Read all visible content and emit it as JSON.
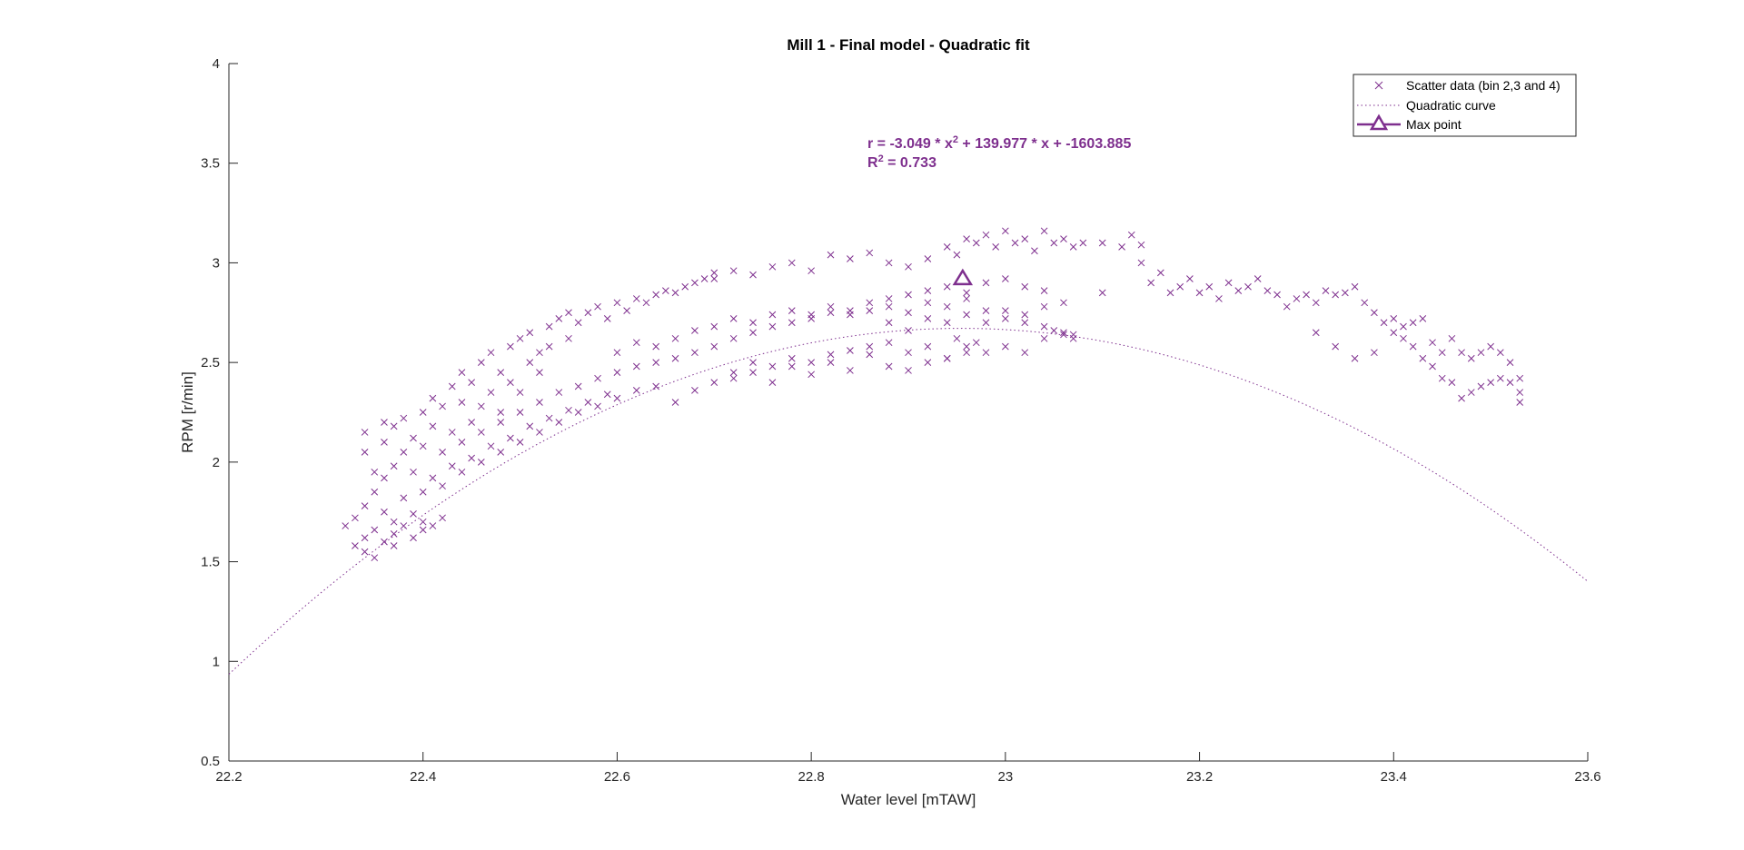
{
  "chart_data": {
    "type": "scatter",
    "title": "Mill 1 - Final model - Quadratic fit",
    "xlabel": "Water level [mTAW]",
    "ylabel": "RPM [r/min]",
    "xlim": [
      22.2,
      23.6
    ],
    "ylim": [
      0.5,
      4
    ],
    "xticks": [
      "22.2",
      "22.4",
      "22.6",
      "22.8",
      "23",
      "23.2",
      "23.4",
      "23.6"
    ],
    "yticks": [
      "0.5",
      "1",
      "1.5",
      "2",
      "2.5",
      "3",
      "3.5",
      "4"
    ],
    "grid": false,
    "legend_position": "top-right",
    "color": "#7E2F8E",
    "annotation": {
      "line1_prefix": "r = -3.049 * x",
      "line1_sup": "2",
      "line1_suffix": " + 139.977 * x + -1603.885",
      "line2_prefix": "R",
      "line2_sup": "2",
      "line2_suffix": " = 0.733"
    },
    "fit": {
      "a": -3.049,
      "b": 139.977,
      "c": -1603.885,
      "r2": 0.733,
      "x_range": [
        22.2,
        23.6
      ]
    },
    "max_point": {
      "x": 22.956,
      "y": 2.92
    },
    "series": [
      {
        "name": "Scatter data (bin 2,3 and 4)",
        "marker": "x",
        "points": [
          [
            22.32,
            1.68
          ],
          [
            22.33,
            1.58
          ],
          [
            22.33,
            1.72
          ],
          [
            22.34,
            1.62
          ],
          [
            22.34,
            1.78
          ],
          [
            22.34,
            1.55
          ],
          [
            22.35,
            1.66
          ],
          [
            22.35,
            1.85
          ],
          [
            22.35,
            1.52
          ],
          [
            22.36,
            1.6
          ],
          [
            22.36,
            1.75
          ],
          [
            22.36,
            1.92
          ],
          [
            22.37,
            1.64
          ],
          [
            22.37,
            1.7
          ],
          [
            22.37,
            1.58
          ],
          [
            22.38,
            1.68
          ],
          [
            22.38,
            1.82
          ],
          [
            22.39,
            1.62
          ],
          [
            22.39,
            1.74
          ],
          [
            22.4,
            1.66
          ],
          [
            22.4,
            1.7
          ],
          [
            22.41,
            1.68
          ],
          [
            22.42,
            1.72
          ],
          [
            22.34,
            2.05
          ],
          [
            22.34,
            2.15
          ],
          [
            22.35,
            1.95
          ],
          [
            22.36,
            2.1
          ],
          [
            22.36,
            2.2
          ],
          [
            22.37,
            1.98
          ],
          [
            22.37,
            2.18
          ],
          [
            22.38,
            2.05
          ],
          [
            22.38,
            2.22
          ],
          [
            22.39,
            2.12
          ],
          [
            22.39,
            1.95
          ],
          [
            22.4,
            2.25
          ],
          [
            22.4,
            2.08
          ],
          [
            22.41,
            2.18
          ],
          [
            22.41,
            2.32
          ],
          [
            22.42,
            2.05
          ],
          [
            22.42,
            2.28
          ],
          [
            22.43,
            2.38
          ],
          [
            22.43,
            2.15
          ],
          [
            22.44,
            2.3
          ],
          [
            22.44,
            2.45
          ],
          [
            22.45,
            2.2
          ],
          [
            22.45,
            2.4
          ],
          [
            22.46,
            2.5
          ],
          [
            22.46,
            2.28
          ],
          [
            22.47,
            2.35
          ],
          [
            22.47,
            2.55
          ],
          [
            22.48,
            2.45
          ],
          [
            22.48,
            2.25
          ],
          [
            22.49,
            2.58
          ],
          [
            22.49,
            2.4
          ],
          [
            22.5,
            2.62
          ],
          [
            22.5,
            2.35
          ],
          [
            22.51,
            2.5
          ],
          [
            22.51,
            2.65
          ],
          [
            22.52,
            2.55
          ],
          [
            22.52,
            2.45
          ],
          [
            22.53,
            2.68
          ],
          [
            22.53,
            2.58
          ],
          [
            22.54,
            2.72
          ],
          [
            22.55,
            2.62
          ],
          [
            22.55,
            2.75
          ],
          [
            22.56,
            2.7
          ],
          [
            22.57,
            2.75
          ],
          [
            22.58,
            2.78
          ],
          [
            22.59,
            2.72
          ],
          [
            22.6,
            2.8
          ],
          [
            22.61,
            2.76
          ],
          [
            22.62,
            2.82
          ],
          [
            22.63,
            2.8
          ],
          [
            22.64,
            2.84
          ],
          [
            22.65,
            2.86
          ],
          [
            22.66,
            2.85
          ],
          [
            22.67,
            2.88
          ],
          [
            22.68,
            2.9
          ],
          [
            22.69,
            2.92
          ],
          [
            22.7,
            2.95
          ],
          [
            22.4,
            1.85
          ],
          [
            22.41,
            1.92
          ],
          [
            22.42,
            1.88
          ],
          [
            22.43,
            1.98
          ],
          [
            22.44,
            1.95
          ],
          [
            22.45,
            2.02
          ],
          [
            22.46,
            2.0
          ],
          [
            22.47,
            2.08
          ],
          [
            22.48,
            2.05
          ],
          [
            22.49,
            2.12
          ],
          [
            22.5,
            2.1
          ],
          [
            22.51,
            2.18
          ],
          [
            22.52,
            2.15
          ],
          [
            22.53,
            2.22
          ],
          [
            22.54,
            2.2
          ],
          [
            22.55,
            2.26
          ],
          [
            22.56,
            2.25
          ],
          [
            22.57,
            2.3
          ],
          [
            22.58,
            2.28
          ],
          [
            22.59,
            2.34
          ],
          [
            22.6,
            2.32
          ],
          [
            22.62,
            2.36
          ],
          [
            22.64,
            2.38
          ],
          [
            22.66,
            2.3
          ],
          [
            22.68,
            2.36
          ],
          [
            22.7,
            2.4
          ],
          [
            22.72,
            2.45
          ],
          [
            22.74,
            2.5
          ],
          [
            22.76,
            2.48
          ],
          [
            22.78,
            2.52
          ],
          [
            22.8,
            2.5
          ],
          [
            22.82,
            2.54
          ],
          [
            22.84,
            2.56
          ],
          [
            22.86,
            2.58
          ],
          [
            22.88,
            2.6
          ],
          [
            22.9,
            2.55
          ],
          [
            22.92,
            2.58
          ],
          [
            22.94,
            2.52
          ],
          [
            22.95,
            2.62
          ],
          [
            22.96,
            2.55
          ],
          [
            22.97,
            2.6
          ],
          [
            22.44,
            2.1
          ],
          [
            22.46,
            2.15
          ],
          [
            22.48,
            2.2
          ],
          [
            22.5,
            2.25
          ],
          [
            22.52,
            2.3
          ],
          [
            22.54,
            2.35
          ],
          [
            22.56,
            2.38
          ],
          [
            22.58,
            2.42
          ],
          [
            22.6,
            2.45
          ],
          [
            22.62,
            2.48
          ],
          [
            22.64,
            2.5
          ],
          [
            22.66,
            2.52
          ],
          [
            22.68,
            2.55
          ],
          [
            22.7,
            2.58
          ],
          [
            22.72,
            2.62
          ],
          [
            22.74,
            2.65
          ],
          [
            22.76,
            2.68
          ],
          [
            22.78,
            2.7
          ],
          [
            22.8,
            2.72
          ],
          [
            22.82,
            2.75
          ],
          [
            22.84,
            2.74
          ],
          [
            22.86,
            2.76
          ],
          [
            22.88,
            2.78
          ],
          [
            22.9,
            2.75
          ],
          [
            22.92,
            2.8
          ],
          [
            22.94,
            2.78
          ],
          [
            22.96,
            2.82
          ],
          [
            22.98,
            2.76
          ],
          [
            23.0,
            2.72
          ],
          [
            23.02,
            2.7
          ],
          [
            23.04,
            2.68
          ],
          [
            23.05,
            2.66
          ],
          [
            23.06,
            2.64
          ],
          [
            23.07,
            2.62
          ],
          [
            22.6,
            2.55
          ],
          [
            22.62,
            2.6
          ],
          [
            22.64,
            2.58
          ],
          [
            22.66,
            2.62
          ],
          [
            22.68,
            2.66
          ],
          [
            22.7,
            2.68
          ],
          [
            22.72,
            2.72
          ],
          [
            22.74,
            2.7
          ],
          [
            22.76,
            2.74
          ],
          [
            22.78,
            2.76
          ],
          [
            22.8,
            2.74
          ],
          [
            22.82,
            2.78
          ],
          [
            22.84,
            2.76
          ],
          [
            22.86,
            2.8
          ],
          [
            22.88,
            2.82
          ],
          [
            22.9,
            2.84
          ],
          [
            22.92,
            2.86
          ],
          [
            22.94,
            2.88
          ],
          [
            22.96,
            2.85
          ],
          [
            22.98,
            2.9
          ],
          [
            23.0,
            2.92
          ],
          [
            23.02,
            2.88
          ],
          [
            23.04,
            2.86
          ],
          [
            22.7,
            2.92
          ],
          [
            22.72,
            2.96
          ],
          [
            22.74,
            2.94
          ],
          [
            22.76,
            2.98
          ],
          [
            22.78,
            3.0
          ],
          [
            22.8,
            2.96
          ],
          [
            22.82,
            3.04
          ],
          [
            22.84,
            3.02
          ],
          [
            22.86,
            3.05
          ],
          [
            22.88,
            3.0
          ],
          [
            22.9,
            2.98
          ],
          [
            22.92,
            3.02
          ],
          [
            22.94,
            3.08
          ],
          [
            22.95,
            3.04
          ],
          [
            22.96,
            3.12
          ],
          [
            22.97,
            3.1
          ],
          [
            22.98,
            3.14
          ],
          [
            22.99,
            3.08
          ],
          [
            23.0,
            3.16
          ],
          [
            23.01,
            3.1
          ],
          [
            23.02,
            3.12
          ],
          [
            23.03,
            3.06
          ],
          [
            23.04,
            3.16
          ],
          [
            23.05,
            3.1
          ],
          [
            23.06,
            3.12
          ],
          [
            23.07,
            3.08
          ],
          [
            23.08,
            3.1
          ],
          [
            23.1,
            3.1
          ],
          [
            23.12,
            3.08
          ],
          [
            23.13,
            3.14
          ],
          [
            23.14,
            3.09
          ],
          [
            22.72,
            2.42
          ],
          [
            22.74,
            2.45
          ],
          [
            22.76,
            2.4
          ],
          [
            22.78,
            2.48
          ],
          [
            22.8,
            2.44
          ],
          [
            22.82,
            2.5
          ],
          [
            22.84,
            2.46
          ],
          [
            22.86,
            2.54
          ],
          [
            22.88,
            2.48
          ],
          [
            22.9,
            2.46
          ],
          [
            22.92,
            2.5
          ],
          [
            22.94,
            2.52
          ],
          [
            22.96,
            2.58
          ],
          [
            22.98,
            2.55
          ],
          [
            23.0,
            2.58
          ],
          [
            23.02,
            2.55
          ],
          [
            23.04,
            2.62
          ],
          [
            23.06,
            2.65
          ],
          [
            23.07,
            2.64
          ],
          [
            22.88,
            2.7
          ],
          [
            22.9,
            2.66
          ],
          [
            22.92,
            2.72
          ],
          [
            22.94,
            2.7
          ],
          [
            22.96,
            2.74
          ],
          [
            22.98,
            2.7
          ],
          [
            23.0,
            2.76
          ],
          [
            23.02,
            2.74
          ],
          [
            23.04,
            2.78
          ],
          [
            23.06,
            2.8
          ],
          [
            23.1,
            2.85
          ],
          [
            23.14,
            3.0
          ],
          [
            23.15,
            2.9
          ],
          [
            23.16,
            2.95
          ],
          [
            23.17,
            2.85
          ],
          [
            23.18,
            2.88
          ],
          [
            23.19,
            2.92
          ],
          [
            23.2,
            2.85
          ],
          [
            23.21,
            2.88
          ],
          [
            23.22,
            2.82
          ],
          [
            23.23,
            2.9
          ],
          [
            23.24,
            2.86
          ],
          [
            23.25,
            2.88
          ],
          [
            23.26,
            2.92
          ],
          [
            23.27,
            2.86
          ],
          [
            23.28,
            2.84
          ],
          [
            23.29,
            2.78
          ],
          [
            23.3,
            2.82
          ],
          [
            23.31,
            2.84
          ],
          [
            23.32,
            2.8
          ],
          [
            23.33,
            2.86
          ],
          [
            23.34,
            2.84
          ],
          [
            23.35,
            2.85
          ],
          [
            23.36,
            2.88
          ],
          [
            23.37,
            2.8
          ],
          [
            23.38,
            2.75
          ],
          [
            23.39,
            2.7
          ],
          [
            23.4,
            2.72
          ],
          [
            23.41,
            2.68
          ],
          [
            23.42,
            2.7
          ],
          [
            23.43,
            2.72
          ],
          [
            23.44,
            2.6
          ],
          [
            23.45,
            2.55
          ],
          [
            23.46,
            2.62
          ],
          [
            23.47,
            2.55
          ],
          [
            23.48,
            2.52
          ],
          [
            23.49,
            2.55
          ],
          [
            23.5,
            2.58
          ],
          [
            23.51,
            2.55
          ],
          [
            23.52,
            2.5
          ],
          [
            23.53,
            2.42
          ],
          [
            23.53,
            2.35
          ],
          [
            23.53,
            2.3
          ],
          [
            23.52,
            2.4
          ],
          [
            23.51,
            2.42
          ],
          [
            23.5,
            2.4
          ],
          [
            23.49,
            2.38
          ],
          [
            23.48,
            2.35
          ],
          [
            23.47,
            2.32
          ],
          [
            23.46,
            2.4
          ],
          [
            23.45,
            2.42
          ],
          [
            23.44,
            2.48
          ],
          [
            23.43,
            2.52
          ],
          [
            23.42,
            2.58
          ],
          [
            23.41,
            2.62
          ],
          [
            23.4,
            2.65
          ],
          [
            23.38,
            2.55
          ],
          [
            23.36,
            2.52
          ],
          [
            23.34,
            2.58
          ],
          [
            23.32,
            2.65
          ]
        ]
      }
    ],
    "legend": [
      {
        "label": "Scatter data (bin 2,3 and 4)",
        "marker": "x"
      },
      {
        "label": "Quadratic curve",
        "marker": "dotted-line"
      },
      {
        "label": "Max point",
        "marker": "triangle"
      }
    ]
  }
}
